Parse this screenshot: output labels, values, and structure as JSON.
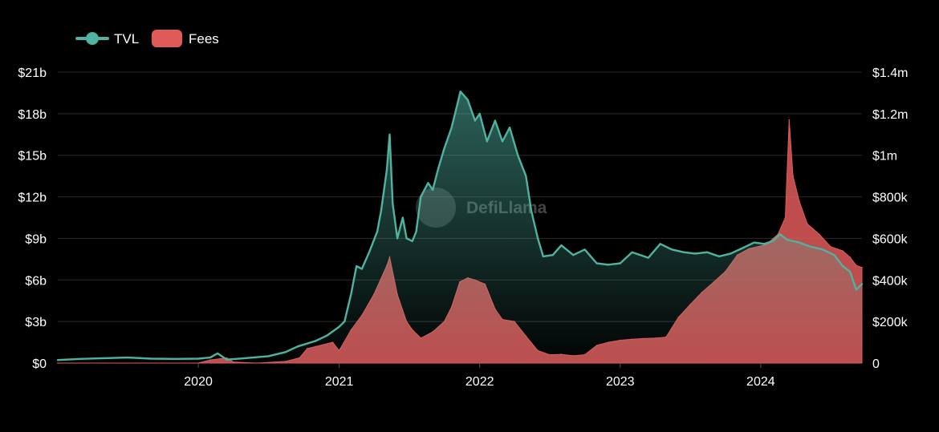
{
  "chart_data": {
    "type": "area",
    "title": "",
    "watermark": "DefiLlama",
    "legend": {
      "position": "top-left",
      "items": [
        {
          "name": "TVL",
          "color": "#4fb3a2",
          "marker": "line-dot"
        },
        {
          "name": "Fees",
          "color": "#e05a5a",
          "marker": "box"
        }
      ]
    },
    "grid": true,
    "x_axis": {
      "type": "date",
      "range": [
        "2019-01-01",
        "2024-09-20"
      ],
      "ticks": [
        {
          "value": "2020-01-01",
          "label": "2020"
        },
        {
          "value": "2021-01-01",
          "label": "2021"
        },
        {
          "value": "2022-01-01",
          "label": "2022"
        },
        {
          "value": "2023-01-01",
          "label": "2023"
        },
        {
          "value": "2024-01-01",
          "label": "2024"
        }
      ]
    },
    "y_left": {
      "series": "TVL",
      "unit": "billion USD",
      "range": [
        0,
        21
      ],
      "ticks": [
        {
          "value": 0,
          "label": "$0"
        },
        {
          "value": 3,
          "label": "$3b"
        },
        {
          "value": 6,
          "label": "$6b"
        },
        {
          "value": 9,
          "label": "$9b"
        },
        {
          "value": 12,
          "label": "$12b"
        },
        {
          "value": 15,
          "label": "$15b"
        },
        {
          "value": 18,
          "label": "$18b"
        },
        {
          "value": 21,
          "label": "$21b"
        }
      ]
    },
    "y_right": {
      "series": "Fees",
      "unit": "thousand USD",
      "range": [
        0,
        1400
      ],
      "ticks": [
        {
          "value": 0,
          "label": "0"
        },
        {
          "value": 200,
          "label": "$200k"
        },
        {
          "value": 400,
          "label": "$400k"
        },
        {
          "value": 600,
          "label": "$600k"
        },
        {
          "value": 800,
          "label": "$800k"
        },
        {
          "value": 1000,
          "label": "$1m"
        },
        {
          "value": 1200,
          "label": "$1.2m"
        },
        {
          "value": 1400,
          "label": "$1.4m"
        }
      ]
    },
    "series": [
      {
        "name": "TVL",
        "axis": "left",
        "color": "#4fb3a2",
        "style": "line-with-gradient-fill",
        "points": [
          [
            "2019-01-01",
            0.22
          ],
          [
            "2019-03-01",
            0.3
          ],
          [
            "2019-05-01",
            0.35
          ],
          [
            "2019-07-01",
            0.4
          ],
          [
            "2019-09-01",
            0.32
          ],
          [
            "2019-11-01",
            0.3
          ],
          [
            "2020-01-01",
            0.32
          ],
          [
            "2020-02-01",
            0.4
          ],
          [
            "2020-02-20",
            0.7
          ],
          [
            "2020-03-15",
            0.25
          ],
          [
            "2020-05-01",
            0.35
          ],
          [
            "2020-07-01",
            0.5
          ],
          [
            "2020-08-15",
            0.8
          ],
          [
            "2020-09-15",
            1.2
          ],
          [
            "2020-11-01",
            1.6
          ],
          [
            "2020-12-01",
            2.0
          ],
          [
            "2020-12-31",
            2.6
          ],
          [
            "2021-01-15",
            3.0
          ],
          [
            "2021-02-01",
            5.0
          ],
          [
            "2021-02-15",
            7.0
          ],
          [
            "2021-03-01",
            6.8
          ],
          [
            "2021-03-20",
            8.0
          ],
          [
            "2021-04-10",
            9.5
          ],
          [
            "2021-04-20",
            11.0
          ],
          [
            "2021-05-05",
            14.0
          ],
          [
            "2021-05-12",
            16.5
          ],
          [
            "2021-05-20",
            11.5
          ],
          [
            "2021-06-01",
            9.0
          ],
          [
            "2021-06-15",
            10.5
          ],
          [
            "2021-06-25",
            9.0
          ],
          [
            "2021-07-10",
            8.8
          ],
          [
            "2021-07-20",
            9.5
          ],
          [
            "2021-08-01",
            12.0
          ],
          [
            "2021-08-20",
            13.0
          ],
          [
            "2021-09-01",
            12.5
          ],
          [
            "2021-09-15",
            14.0
          ],
          [
            "2021-10-01",
            15.5
          ],
          [
            "2021-10-20",
            17.0
          ],
          [
            "2021-11-05",
            18.8
          ],
          [
            "2021-11-12",
            19.6
          ],
          [
            "2021-12-01",
            19.0
          ],
          [
            "2021-12-20",
            17.5
          ],
          [
            "2022-01-01",
            18.0
          ],
          [
            "2022-01-20",
            16.0
          ],
          [
            "2022-02-10",
            17.5
          ],
          [
            "2022-03-01",
            16.0
          ],
          [
            "2022-03-20",
            17.0
          ],
          [
            "2022-04-10",
            15.0
          ],
          [
            "2022-05-01",
            13.5
          ],
          [
            "2022-05-15",
            11.0
          ],
          [
            "2022-06-01",
            9.0
          ],
          [
            "2022-06-15",
            7.7
          ],
          [
            "2022-07-10",
            7.8
          ],
          [
            "2022-08-01",
            8.5
          ],
          [
            "2022-09-01",
            7.8
          ],
          [
            "2022-10-01",
            8.2
          ],
          [
            "2022-11-01",
            7.2
          ],
          [
            "2022-12-01",
            7.1
          ],
          [
            "2023-01-01",
            7.2
          ],
          [
            "2023-02-01",
            8.0
          ],
          [
            "2023-03-15",
            7.6
          ],
          [
            "2023-04-15",
            8.6
          ],
          [
            "2023-05-15",
            8.2
          ],
          [
            "2023-06-15",
            8.0
          ],
          [
            "2023-07-15",
            7.9
          ],
          [
            "2023-08-15",
            8.0
          ],
          [
            "2023-09-15",
            7.7
          ],
          [
            "2023-10-15",
            7.9
          ],
          [
            "2023-11-15",
            8.3
          ],
          [
            "2023-12-15",
            8.7
          ],
          [
            "2024-01-10",
            8.6
          ],
          [
            "2024-02-01",
            8.8
          ],
          [
            "2024-02-20",
            9.3
          ],
          [
            "2024-03-10",
            8.9
          ],
          [
            "2024-04-10",
            8.7
          ],
          [
            "2024-05-10",
            8.4
          ],
          [
            "2024-06-10",
            8.2
          ],
          [
            "2024-07-10",
            7.8
          ],
          [
            "2024-08-01",
            7.0
          ],
          [
            "2024-08-20",
            6.6
          ],
          [
            "2024-09-05",
            5.3
          ],
          [
            "2024-09-20",
            5.7
          ]
        ]
      },
      {
        "name": "Fees",
        "axis": "right",
        "color": "#e05a5a",
        "style": "area",
        "points": [
          [
            "2019-01-01",
            0
          ],
          [
            "2020-01-01",
            0
          ],
          [
            "2020-02-01",
            15
          ],
          [
            "2020-03-15",
            25
          ],
          [
            "2020-04-01",
            5
          ],
          [
            "2020-06-01",
            0
          ],
          [
            "2020-08-15",
            8
          ],
          [
            "2020-09-20",
            25
          ],
          [
            "2020-10-10",
            70
          ],
          [
            "2020-11-01",
            80
          ],
          [
            "2020-12-15",
            100
          ],
          [
            "2021-01-01",
            60
          ],
          [
            "2021-02-01",
            160
          ],
          [
            "2021-03-01",
            230
          ],
          [
            "2021-04-01",
            330
          ],
          [
            "2021-05-05",
            470
          ],
          [
            "2021-05-12",
            510
          ],
          [
            "2021-06-01",
            330
          ],
          [
            "2021-06-25",
            200
          ],
          [
            "2021-07-10",
            160
          ],
          [
            "2021-08-01",
            120
          ],
          [
            "2021-09-01",
            150
          ],
          [
            "2021-10-01",
            200
          ],
          [
            "2021-10-20",
            270
          ],
          [
            "2021-11-10",
            390
          ],
          [
            "2021-12-01",
            410
          ],
          [
            "2021-12-20",
            400
          ],
          [
            "2022-01-15",
            380
          ],
          [
            "2022-02-10",
            260
          ],
          [
            "2022-03-01",
            210
          ],
          [
            "2022-04-01",
            200
          ],
          [
            "2022-05-01",
            130
          ],
          [
            "2022-06-01",
            60
          ],
          [
            "2022-07-01",
            40
          ],
          [
            "2022-08-01",
            42
          ],
          [
            "2022-09-01",
            35
          ],
          [
            "2022-10-01",
            40
          ],
          [
            "2022-11-01",
            85
          ],
          [
            "2022-12-01",
            100
          ],
          [
            "2023-01-01",
            110
          ],
          [
            "2023-02-01",
            115
          ],
          [
            "2023-03-01",
            118
          ],
          [
            "2023-04-01",
            120
          ],
          [
            "2023-04-30",
            125
          ],
          [
            "2023-06-01",
            220
          ],
          [
            "2023-07-01",
            280
          ],
          [
            "2023-08-01",
            340
          ],
          [
            "2023-09-01",
            390
          ],
          [
            "2023-10-01",
            440
          ],
          [
            "2023-11-01",
            520
          ],
          [
            "2023-12-01",
            550
          ],
          [
            "2024-01-15",
            570
          ],
          [
            "2024-02-15",
            620
          ],
          [
            "2024-03-05",
            700
          ],
          [
            "2024-03-15",
            1170
          ],
          [
            "2024-03-25",
            900
          ],
          [
            "2024-04-10",
            780
          ],
          [
            "2024-05-01",
            670
          ],
          [
            "2024-06-01",
            620
          ],
          [
            "2024-07-01",
            560
          ],
          [
            "2024-08-01",
            540
          ],
          [
            "2024-08-20",
            510
          ],
          [
            "2024-09-05",
            470
          ],
          [
            "2024-09-20",
            460
          ]
        ]
      }
    ]
  }
}
